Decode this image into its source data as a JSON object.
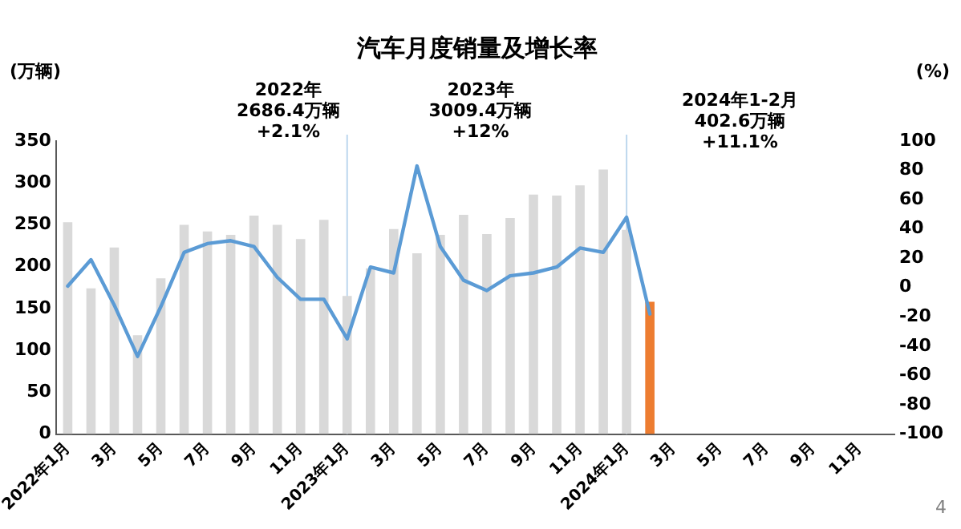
{
  "chart_data": {
    "type": "bar",
    "title": "汽车月度销量及增长率",
    "ylabel": "(万辆)",
    "y2label": "(%)",
    "categories": [
      "2022年1月",
      null,
      "3月",
      null,
      "5月",
      null,
      "7月",
      null,
      "9月",
      null,
      "11月",
      null,
      "2023年1月",
      null,
      "3月",
      null,
      "5月",
      null,
      "7月",
      null,
      "9月",
      null,
      "11月",
      null,
      "2024年1月",
      null,
      "3月",
      null,
      "5月",
      null,
      "7月",
      null,
      "9月",
      null,
      "11月",
      null
    ],
    "series": [
      {
        "colors": [
          "#d9d9d9",
          "#d9d9d9",
          "#d9d9d9",
          "#d9d9d9",
          "#d9d9d9",
          "#d9d9d9",
          "#d9d9d9",
          "#d9d9d9",
          "#d9d9d9",
          "#d9d9d9",
          "#d9d9d9",
          "#d9d9d9",
          "#d9d9d9",
          "#d9d9d9",
          "#d9d9d9",
          "#d9d9d9",
          "#d9d9d9",
          "#d9d9d9",
          "#d9d9d9",
          "#d9d9d9",
          "#d9d9d9",
          "#d9d9d9",
          "#d9d9d9",
          "#d9d9d9",
          "#d9d9d9",
          "#ed7d31",
          "#d9d9d9",
          "#d9d9d9",
          "#d9d9d9",
          "#d9d9d9",
          "#d9d9d9",
          "#d9d9d9",
          "#d9d9d9",
          "#d9d9d9",
          "#d9d9d9",
          "#d9d9d9"
        ],
        "values": [
          253,
          174,
          223,
          118,
          186,
          250,
          242,
          238,
          261,
          250,
          233,
          256,
          165,
          198,
          245,
          216,
          238,
          262,
          239,
          258,
          286,
          285,
          297,
          316,
          244,
          158,
          null,
          null,
          null,
          null,
          null,
          null,
          null,
          null,
          null,
          null
        ]
      },
      {
        "type": "line",
        "axis": "y2",
        "color": "#5b9bd5",
        "values": [
          1,
          19,
          -12,
          -47,
          -13,
          24,
          30,
          32,
          28,
          7,
          -8,
          -8,
          -35,
          14,
          10,
          83,
          28,
          5,
          -2,
          8,
          10,
          14,
          27,
          24,
          48,
          -18,
          null,
          null,
          null,
          null,
          null,
          null,
          null,
          null,
          null,
          null
        ]
      }
    ],
    "ylim": [
      0,
      350
    ],
    "yticks": [
      0,
      50,
      100,
      150,
      200,
      250,
      300,
      350
    ],
    "y2lim": [
      -100,
      100
    ],
    "y2ticks": [
      -100,
      -80,
      -60,
      -40,
      -20,
      0,
      20,
      40,
      60,
      80,
      100
    ],
    "ref_lines": [
      {
        "axis": "x",
        "value": "2023年1月",
        "color": "#bdd7ee"
      },
      {
        "axis": "x",
        "value": "2024年1月",
        "color": "#bdd7ee"
      }
    ],
    "annotations": [
      "2022年\n2686.4万辆\n+2.1%",
      "2023年\n3009.4万辆\n+12%",
      "2024年1-2月\n402.6万辆\n+11.1%",
      "4"
    ],
    "grid": false,
    "legend": false,
    "marker": "none",
    "line_style": "solid"
  }
}
